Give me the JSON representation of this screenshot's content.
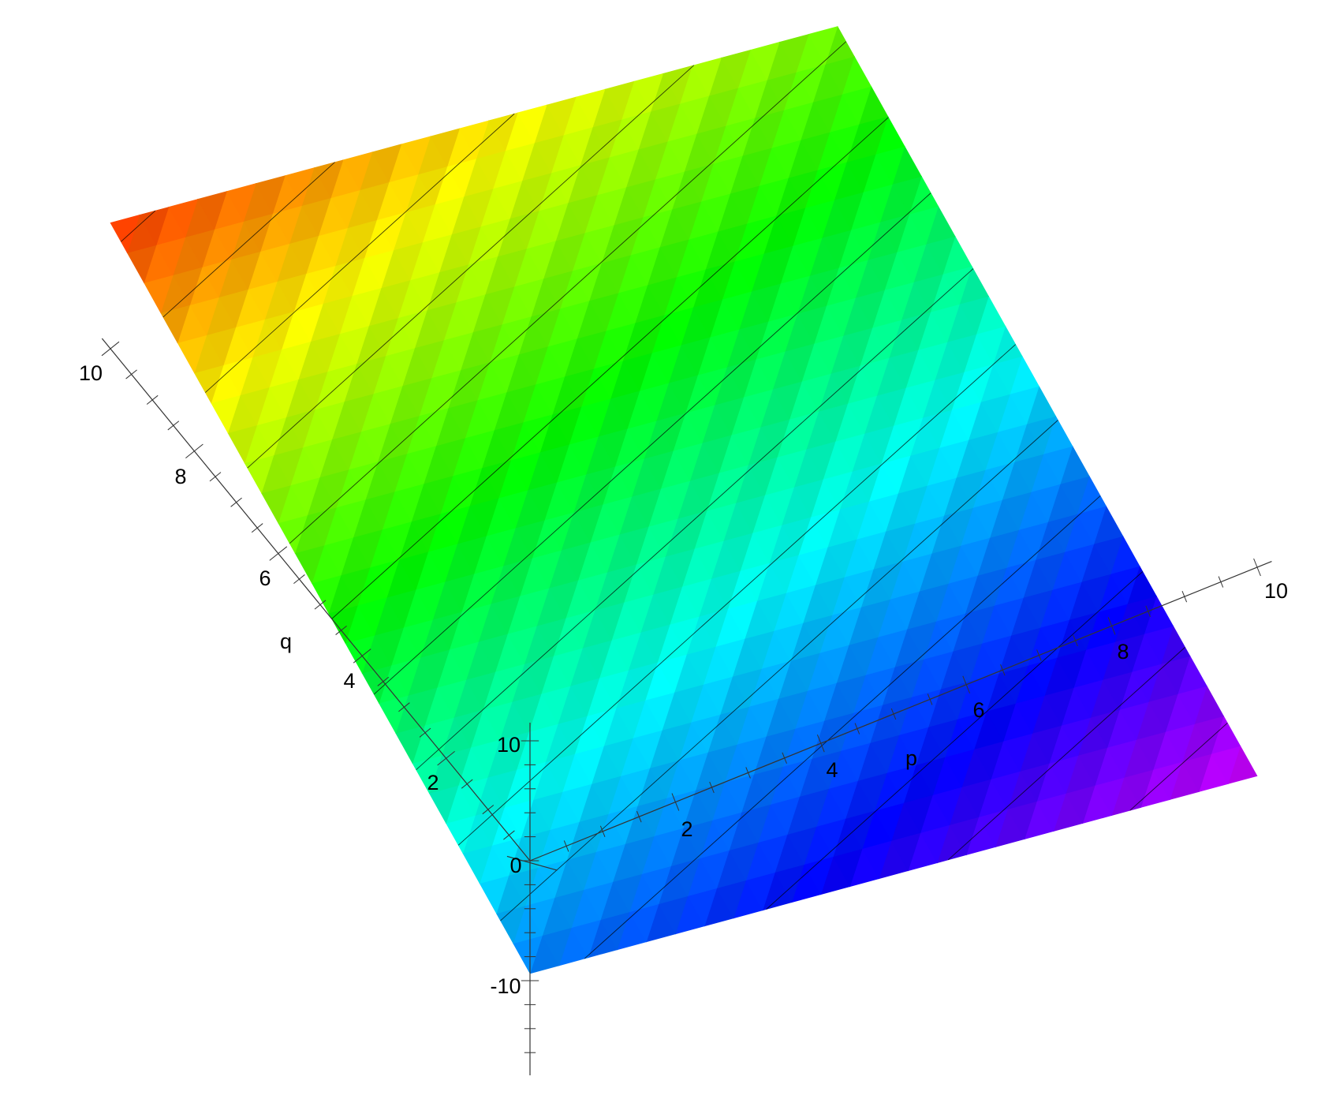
{
  "chart_data": {
    "type": "surface",
    "xlabel": "p",
    "ylabel": "q",
    "zlabel": "",
    "xlim": [
      0,
      10
    ],
    "ylim": [
      0,
      10
    ],
    "zlim": [
      -18,
      12
    ],
    "x_tick_labels": [
      "2",
      "4",
      "6",
      "8",
      "10"
    ],
    "y_tick_labels": [
      "2",
      "4",
      "6",
      "8",
      "10"
    ],
    "z_tick_labels": [
      "10",
      "0",
      "-10"
    ],
    "surface": {
      "p": [
        0,
        10
      ],
      "q": [
        0,
        10
      ],
      "z_at_corners": {
        "p0_q0": -9.4,
        "p10_q0": -17.4,
        "p0_q10": 10.5,
        "p10_q10": 2.4
      }
    },
    "colormap": "hue by z (red high, magenta low)",
    "contour_levels": [
      -16,
      -14,
      -12,
      -10,
      -8,
      -6,
      -4,
      -2,
      0,
      2,
      4,
      6,
      8,
      10
    ],
    "contour_color": "#000000",
    "grid": false,
    "legend": "none"
  }
}
